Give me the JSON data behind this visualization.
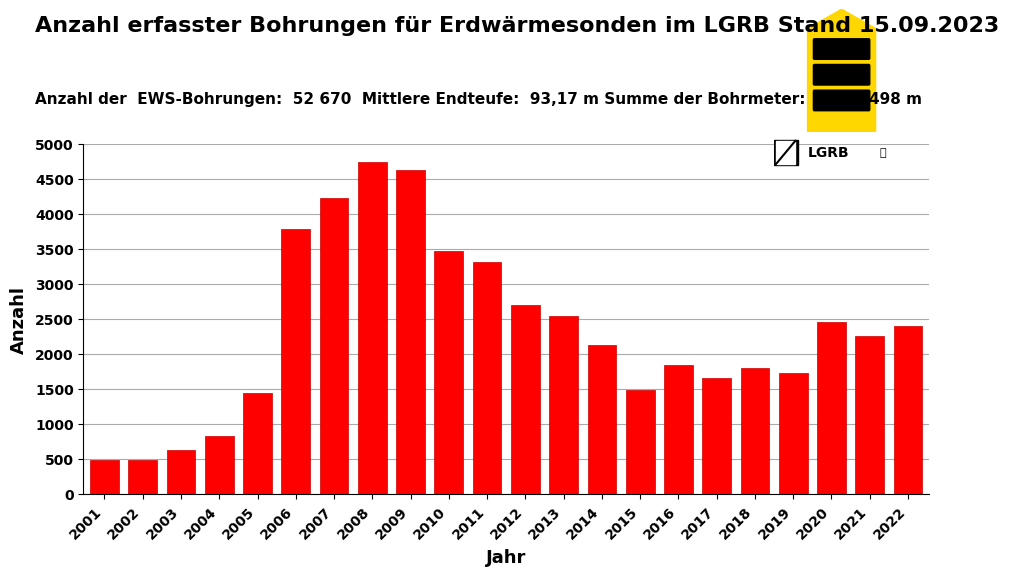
{
  "title": "Anzahl erfasster Bohrungen für Erdwärmesonden im LGRB Stand 15.09.2023",
  "subtitle": "Anzahl der  EWS-Bohrungen:  52 670  Mittlere Endteufe:  93,17 m Summe der Bohrmeter:  4 907 498 m",
  "xlabel": "Jahr",
  "ylabel": "Anzahl",
  "years": [
    "2001",
    "2002",
    "2003",
    "2004",
    "2005",
    "2006",
    "2007",
    "2008",
    "2009",
    "2010",
    "2011",
    "2012",
    "2013",
    "2014",
    "2015",
    "2016",
    "2017",
    "2018",
    "2019",
    "2020",
    "2021",
    "2022"
  ],
  "values": [
    490,
    490,
    620,
    820,
    1440,
    3780,
    4220,
    4740,
    4620,
    3460,
    3310,
    2700,
    2540,
    2130,
    1490,
    1840,
    1650,
    1800,
    1730,
    2460,
    2260,
    2390
  ],
  "bar_color": "#ff0000",
  "bar_edge_color": "#cc0000",
  "ylim": [
    0,
    5000
  ],
  "yticks": [
    0,
    500,
    1000,
    1500,
    2000,
    2500,
    3000,
    3500,
    4000,
    4500,
    5000
  ],
  "background_color": "#ffffff",
  "grid_color": "#aaaaaa",
  "title_fontsize": 16,
  "subtitle_fontsize": 11,
  "axis_label_fontsize": 13,
  "tick_fontsize": 10
}
